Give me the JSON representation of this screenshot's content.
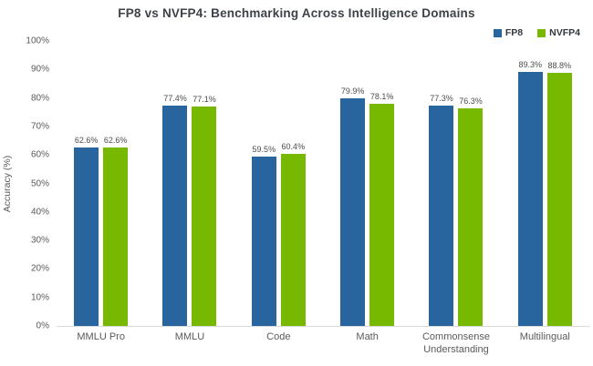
{
  "title": "FP8 vs NVFP4: Benchmarking Across Intelligence Domains",
  "colors": {
    "fp8_blue": "#28659E",
    "nvfp4_green": "#76B900",
    "baseline_gray": "#d9d9d9",
    "title_text": "#3d4248",
    "axis_text": "#5a5a5a"
  },
  "chart_data": {
    "type": "bar",
    "title": "FP8 vs NVFP4: Benchmarking Across Intelligence Domains",
    "xlabel": "",
    "ylabel": "Accuracy (%)",
    "ylim": [
      0,
      100
    ],
    "ytick_step": 10,
    "ytick_format": "percent",
    "grid": false,
    "legend_position": "top-right",
    "categories": [
      "MMLU Pro",
      "MMLU",
      "Code",
      "Math",
      "Commonsense Understanding",
      "Multilingual"
    ],
    "series": [
      {
        "name": "FP8",
        "color": "#28659E",
        "values": [
          62.6,
          77.4,
          59.5,
          79.9,
          77.3,
          89.3
        ],
        "labels": [
          "62.6%",
          "77.4%",
          "59.5%",
          "79.9%",
          "77.3%",
          "89.3%"
        ]
      },
      {
        "name": "NVFP4",
        "color": "#76B900",
        "values": [
          62.6,
          77.1,
          60.4,
          78.1,
          76.3,
          88.8
        ],
        "labels": [
          "62.6%",
          "77.1%",
          "60.4%",
          "78.1%",
          "76.3%",
          "88.8%"
        ]
      }
    ]
  }
}
